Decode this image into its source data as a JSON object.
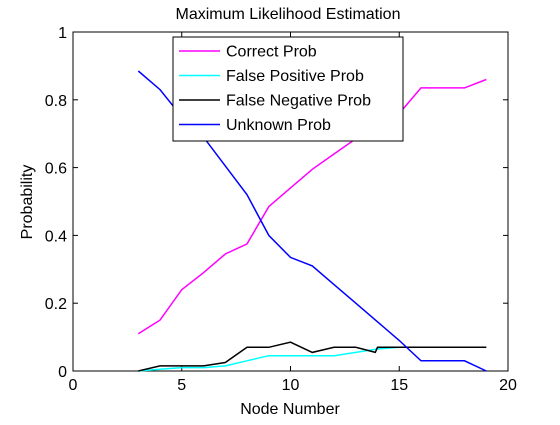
{
  "chart_data": {
    "type": "line",
    "title": "Maximum Likelihood Estimation",
    "xlabel": "Node Number",
    "ylabel": "Probability",
    "xlim": [
      0,
      20
    ],
    "ylim": [
      0,
      1
    ],
    "xticks": [
      0,
      5,
      10,
      15,
      20
    ],
    "yticks": [
      0,
      0.2,
      0.4,
      0.6,
      0.8,
      1
    ],
    "grid": false,
    "legend_position": "top-center",
    "series": [
      {
        "name": "Correct Prob",
        "color": "#ff00ff",
        "x": [
          3,
          4,
          5,
          6,
          7,
          8,
          9,
          10,
          11,
          12,
          13,
          14,
          15,
          16,
          17,
          18,
          19
        ],
        "y": [
          0.11,
          0.15,
          0.24,
          0.29,
          0.345,
          0.375,
          0.485,
          0.54,
          0.595,
          0.64,
          0.685,
          0.72,
          0.76,
          0.835,
          0.835,
          0.835,
          0.86
        ]
      },
      {
        "name": "False Positive Prob",
        "color": "#00ffff",
        "x": [
          3,
          4,
          5,
          6,
          7,
          8,
          9,
          10,
          11,
          12,
          13,
          14,
          15,
          16,
          17,
          18,
          19
        ],
        "y": [
          0.0,
          0.005,
          0.01,
          0.01,
          0.015,
          0.03,
          0.045,
          0.045,
          0.045,
          0.045,
          0.055,
          0.065,
          0.07,
          0.07,
          0.07,
          0.07,
          0.07
        ]
      },
      {
        "name": "False Negative Prob",
        "color": "#000000",
        "x": [
          3,
          4,
          5,
          6,
          7,
          8,
          9,
          10,
          11,
          12,
          13,
          13.9,
          14,
          15,
          16,
          17,
          18,
          19
        ],
        "y": [
          0.0,
          0.015,
          0.015,
          0.015,
          0.025,
          0.07,
          0.07,
          0.085,
          0.055,
          0.07,
          0.07,
          0.055,
          0.07,
          0.07,
          0.07,
          0.07,
          0.07,
          0.07
        ]
      },
      {
        "name": "Unknown Prob",
        "color": "#0000ff",
        "x": [
          3,
          4,
          5,
          6,
          7,
          8,
          9,
          10,
          11,
          12,
          13,
          14,
          15,
          16,
          17,
          18,
          19
        ],
        "y": [
          0.885,
          0.83,
          0.75,
          0.69,
          0.605,
          0.52,
          0.4,
          0.335,
          0.31,
          0.255,
          0.2,
          0.145,
          0.09,
          0.03,
          0.03,
          0.03,
          0.0
        ]
      }
    ]
  }
}
